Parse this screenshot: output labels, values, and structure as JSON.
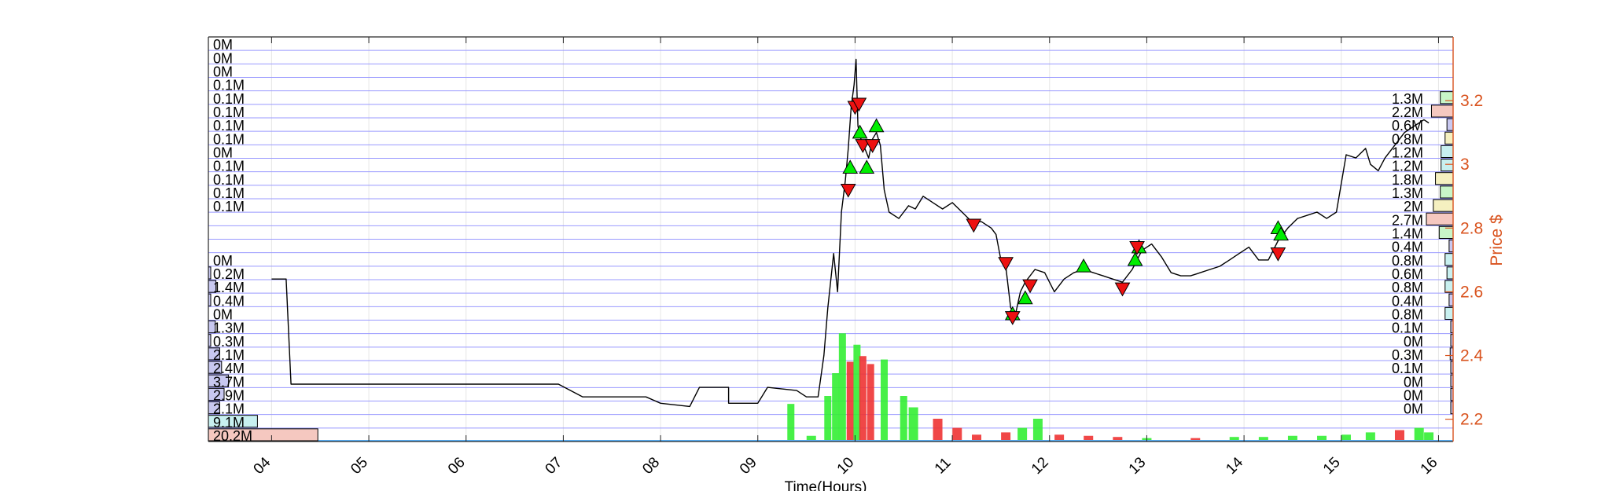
{
  "chart_data": {
    "type": "line",
    "xlabel": "Time(Hours)",
    "ylabel_right": "Price $",
    "x_ticks": [
      "04",
      "05",
      "06",
      "07",
      "08",
      "09",
      "10",
      "11",
      "12",
      "13",
      "14",
      "15",
      "16"
    ],
    "xlim": [
      3.35,
      16.15
    ],
    "ylim_right": [
      2.13,
      3.4
    ],
    "y_ticks_right": [
      {
        "value": 2.2,
        "label": "2.2"
      },
      {
        "value": 2.4,
        "label": "2.4"
      },
      {
        "value": 2.6,
        "label": "2.6"
      },
      {
        "value": 2.8,
        "label": "2.8"
      },
      {
        "value": 3.0,
        "label": "3"
      },
      {
        "value": 3.2,
        "label": "3.2"
      }
    ],
    "colors": {
      "price_line": "#000000",
      "right_axis": "#d9531e",
      "grid": "#9999ff",
      "buy_marker": "#00ee00",
      "sell_marker": "#ee1111",
      "volume_up": "#33ee33",
      "volume_down": "#ee3333",
      "bin_blue": "#c8c8f0",
      "bin_cyan": "#c8f0f0",
      "bin_red": "#f5c8c0",
      "bin_yellow": "#f5f0c0",
      "bin_green": "#c8f5c8"
    },
    "price_series": {
      "name": "",
      "points": [
        [
          4.0,
          2.64
        ],
        [
          4.15,
          2.64
        ],
        [
          4.2,
          2.31
        ],
        [
          5.2,
          2.31
        ],
        [
          6.0,
          2.31
        ],
        [
          6.95,
          2.31
        ],
        [
          7.2,
          2.27
        ],
        [
          7.85,
          2.27
        ],
        [
          8.0,
          2.25
        ],
        [
          8.3,
          2.24
        ],
        [
          8.4,
          2.3
        ],
        [
          8.7,
          2.3
        ],
        [
          8.7,
          2.25
        ],
        [
          9.0,
          2.25
        ],
        [
          9.1,
          2.3
        ],
        [
          9.4,
          2.29
        ],
        [
          9.5,
          2.27
        ],
        [
          9.62,
          2.27
        ],
        [
          9.68,
          2.4
        ],
        [
          9.72,
          2.55
        ],
        [
          9.78,
          2.72
        ],
        [
          9.82,
          2.6
        ],
        [
          9.86,
          2.85
        ],
        [
          9.9,
          2.95
        ],
        [
          9.93,
          3.05
        ],
        [
          9.96,
          3.18
        ],
        [
          9.99,
          3.25
        ],
        [
          10.01,
          3.33
        ],
        [
          10.03,
          3.12
        ],
        [
          10.06,
          3.08
        ],
        [
          10.1,
          3.05
        ],
        [
          10.14,
          3.02
        ],
        [
          10.18,
          3.08
        ],
        [
          10.22,
          3.1
        ],
        [
          10.26,
          3.06
        ],
        [
          10.3,
          2.92
        ],
        [
          10.35,
          2.85
        ],
        [
          10.45,
          2.83
        ],
        [
          10.55,
          2.87
        ],
        [
          10.62,
          2.86
        ],
        [
          10.7,
          2.9
        ],
        [
          10.8,
          2.88
        ],
        [
          10.9,
          2.86
        ],
        [
          11.0,
          2.88
        ],
        [
          11.1,
          2.85
        ],
        [
          11.2,
          2.82
        ],
        [
          11.3,
          2.82
        ],
        [
          11.4,
          2.8
        ],
        [
          11.45,
          2.78
        ],
        [
          11.5,
          2.7
        ],
        [
          11.55,
          2.68
        ],
        [
          11.6,
          2.55
        ],
        [
          11.65,
          2.53
        ],
        [
          11.7,
          2.6
        ],
        [
          11.75,
          2.63
        ],
        [
          11.85,
          2.67
        ],
        [
          11.95,
          2.66
        ],
        [
          12.05,
          2.6
        ],
        [
          12.15,
          2.64
        ],
        [
          12.25,
          2.66
        ],
        [
          12.35,
          2.67
        ],
        [
          12.45,
          2.66
        ],
        [
          12.55,
          2.65
        ],
        [
          12.65,
          2.64
        ],
        [
          12.75,
          2.63
        ],
        [
          12.85,
          2.67
        ],
        [
          12.95,
          2.73
        ],
        [
          13.05,
          2.75
        ],
        [
          13.15,
          2.71
        ],
        [
          13.25,
          2.66
        ],
        [
          13.35,
          2.65
        ],
        [
          13.45,
          2.65
        ],
        [
          13.55,
          2.66
        ],
        [
          13.65,
          2.67
        ],
        [
          13.75,
          2.68
        ],
        [
          13.85,
          2.7
        ],
        [
          13.95,
          2.72
        ],
        [
          14.05,
          2.74
        ],
        [
          14.15,
          2.7
        ],
        [
          14.25,
          2.7
        ],
        [
          14.35,
          2.76
        ],
        [
          14.45,
          2.8
        ],
        [
          14.55,
          2.83
        ],
        [
          14.65,
          2.84
        ],
        [
          14.75,
          2.85
        ],
        [
          14.85,
          2.83
        ],
        [
          14.95,
          2.85
        ],
        [
          15.05,
          3.03
        ],
        [
          15.15,
          3.02
        ],
        [
          15.25,
          3.05
        ],
        [
          15.3,
          3.0
        ],
        [
          15.38,
          2.98
        ],
        [
          15.45,
          3.02
        ],
        [
          15.55,
          3.06
        ],
        [
          15.65,
          3.1
        ],
        [
          15.75,
          3.12
        ],
        [
          15.85,
          3.14
        ],
        [
          15.9,
          3.13
        ]
      ]
    },
    "buy_markers": [
      [
        9.95,
        2.99
      ],
      [
        10.05,
        3.1
      ],
      [
        10.12,
        2.99
      ],
      [
        10.22,
        3.12
      ],
      [
        11.75,
        2.58
      ],
      [
        11.62,
        2.53
      ],
      [
        12.35,
        2.68
      ],
      [
        12.88,
        2.7
      ],
      [
        12.92,
        2.74
      ],
      [
        14.35,
        2.8
      ],
      [
        14.38,
        2.78
      ]
    ],
    "sell_markers": [
      [
        9.93,
        2.92
      ],
      [
        10.0,
        3.18
      ],
      [
        10.04,
        3.19
      ],
      [
        10.08,
        3.06
      ],
      [
        10.18,
        3.06
      ],
      [
        11.22,
        2.81
      ],
      [
        11.55,
        2.69
      ],
      [
        11.8,
        2.62
      ],
      [
        11.62,
        2.52
      ],
      [
        12.75,
        2.61
      ],
      [
        12.9,
        2.74
      ],
      [
        14.35,
        2.72
      ]
    ],
    "volume_bars": [
      {
        "t": 9.34,
        "v": 0.33,
        "side": "up"
      },
      {
        "t": 9.55,
        "v": 0.05,
        "side": "up"
      },
      {
        "t": 9.72,
        "v": 0.4,
        "side": "up"
      },
      {
        "t": 9.8,
        "v": 0.6,
        "side": "up"
      },
      {
        "t": 9.87,
        "v": 0.95,
        "side": "up"
      },
      {
        "t": 9.95,
        "v": 0.7,
        "side": "down"
      },
      {
        "t": 10.02,
        "v": 0.85,
        "side": "up"
      },
      {
        "t": 10.08,
        "v": 0.75,
        "side": "down"
      },
      {
        "t": 10.16,
        "v": 0.68,
        "side": "down"
      },
      {
        "t": 10.3,
        "v": 0.72,
        "side": "up"
      },
      {
        "t": 10.5,
        "v": 0.4,
        "side": "up"
      },
      {
        "t": 10.6,
        "v": 0.3,
        "side": "up"
      },
      {
        "t": 10.85,
        "v": 0.2,
        "side": "down"
      },
      {
        "t": 11.05,
        "v": 0.12,
        "side": "down"
      },
      {
        "t": 11.25,
        "v": 0.06,
        "side": "down"
      },
      {
        "t": 11.55,
        "v": 0.08,
        "side": "down"
      },
      {
        "t": 11.72,
        "v": 0.12,
        "side": "up"
      },
      {
        "t": 11.88,
        "v": 0.2,
        "side": "up"
      },
      {
        "t": 12.1,
        "v": 0.06,
        "side": "down"
      },
      {
        "t": 12.4,
        "v": 0.05,
        "side": "down"
      },
      {
        "t": 12.7,
        "v": 0.04,
        "side": "down"
      },
      {
        "t": 13.0,
        "v": 0.03,
        "side": "up"
      },
      {
        "t": 13.5,
        "v": 0.03,
        "side": "down"
      },
      {
        "t": 13.9,
        "v": 0.04,
        "side": "up"
      },
      {
        "t": 14.2,
        "v": 0.04,
        "side": "up"
      },
      {
        "t": 14.5,
        "v": 0.05,
        "side": "up"
      },
      {
        "t": 14.8,
        "v": 0.05,
        "side": "up"
      },
      {
        "t": 15.05,
        "v": 0.06,
        "side": "up"
      },
      {
        "t": 15.3,
        "v": 0.08,
        "side": "up"
      },
      {
        "t": 15.6,
        "v": 0.1,
        "side": "down"
      },
      {
        "t": 15.8,
        "v": 0.12,
        "side": "up"
      },
      {
        "t": 15.9,
        "v": 0.08,
        "side": "up"
      }
    ],
    "volume_profile_left": [
      {
        "label": "0M",
        "frac": 0.0,
        "color": "none"
      },
      {
        "label": "0M",
        "frac": 0.0,
        "color": "none"
      },
      {
        "label": "0M",
        "frac": 0.0,
        "color": "none"
      },
      {
        "label": "0.1M",
        "frac": 0.0,
        "color": "none"
      },
      {
        "label": "0.1M",
        "frac": 0.0,
        "color": "none"
      },
      {
        "label": "0.1M",
        "frac": 0.0,
        "color": "none"
      },
      {
        "label": "0.1M",
        "frac": 0.0,
        "color": "none"
      },
      {
        "label": "0.1M",
        "frac": 0.0,
        "color": "none"
      },
      {
        "label": "0M",
        "frac": 0.0,
        "color": "none"
      },
      {
        "label": "0.1M",
        "frac": 0.0,
        "color": "none"
      },
      {
        "label": "0.1M",
        "frac": 0.0,
        "color": "none"
      },
      {
        "label": "0.1M",
        "frac": 0.0,
        "color": "none"
      },
      {
        "label": "0.1M",
        "frac": 0.0,
        "color": "none"
      },
      {
        "label": "",
        "frac": 0.0,
        "color": "none"
      },
      {
        "label": "",
        "frac": 0.0,
        "color": "none"
      },
      {
        "label": "",
        "frac": 0.0,
        "color": "none"
      },
      {
        "label": "0M",
        "frac": 0.0,
        "color": "none"
      },
      {
        "label": "0.2M",
        "frac": 0.012,
        "color": "blue"
      },
      {
        "label": "1.4M",
        "frac": 0.06,
        "color": "blue"
      },
      {
        "label": "0.4M",
        "frac": 0.018,
        "color": "blue"
      },
      {
        "label": "0M",
        "frac": 0.0,
        "color": "none"
      },
      {
        "label": "1.3M",
        "frac": 0.055,
        "color": "blue"
      },
      {
        "label": "0.3M",
        "frac": 0.015,
        "color": "blue"
      },
      {
        "label": "2.1M",
        "frac": 0.09,
        "color": "blue"
      },
      {
        "label": "2.4M",
        "frac": 0.105,
        "color": "blue"
      },
      {
        "label": "3.7M",
        "frac": 0.16,
        "color": "blue"
      },
      {
        "label": "2.9M",
        "frac": 0.125,
        "color": "blue"
      },
      {
        "label": "2.1M",
        "frac": 0.09,
        "color": "blue"
      },
      {
        "label": "9.1M",
        "frac": 0.39,
        "color": "cyan"
      },
      {
        "label": "20.2M",
        "frac": 0.87,
        "color": "red"
      }
    ],
    "volume_profile_right": [
      {
        "label": "",
        "frac": 0.0,
        "color": "none"
      },
      {
        "label": "",
        "frac": 0.0,
        "color": "none"
      },
      {
        "label": "",
        "frac": 0.0,
        "color": "none"
      },
      {
        "label": "",
        "frac": 0.0,
        "color": "none"
      },
      {
        "label": "1.3M",
        "frac": 0.48,
        "color": "green"
      },
      {
        "label": "2.2M",
        "frac": 0.81,
        "color": "red"
      },
      {
        "label": "0.6M",
        "frac": 0.23,
        "color": "blue"
      },
      {
        "label": "0.8M",
        "frac": 0.3,
        "color": "yellow"
      },
      {
        "label": "1.2M",
        "frac": 0.45,
        "color": "cyan"
      },
      {
        "label": "1.2M",
        "frac": 0.45,
        "color": "cyan"
      },
      {
        "label": "1.8M",
        "frac": 0.66,
        "color": "yellow"
      },
      {
        "label": "1.3M",
        "frac": 0.48,
        "color": "green"
      },
      {
        "label": "2M",
        "frac": 0.74,
        "color": "yellow"
      },
      {
        "label": "2.7M",
        "frac": 1.0,
        "color": "red"
      },
      {
        "label": "1.4M",
        "frac": 0.52,
        "color": "green"
      },
      {
        "label": "0.4M",
        "frac": 0.15,
        "color": "blue"
      },
      {
        "label": "0.8M",
        "frac": 0.3,
        "color": "cyan"
      },
      {
        "label": "0.6M",
        "frac": 0.23,
        "color": "cyan"
      },
      {
        "label": "0.8M",
        "frac": 0.3,
        "color": "cyan"
      },
      {
        "label": "0.4M",
        "frac": 0.15,
        "color": "blue"
      },
      {
        "label": "0.8M",
        "frac": 0.3,
        "color": "cyan"
      },
      {
        "label": "0.1M",
        "frac": 0.05,
        "color": "blue"
      },
      {
        "label": "0M",
        "frac": 0.02,
        "color": "blue"
      },
      {
        "label": "0.3M",
        "frac": 0.11,
        "color": "blue"
      },
      {
        "label": "0.1M",
        "frac": 0.05,
        "color": "blue"
      },
      {
        "label": "0M",
        "frac": 0.02,
        "color": "blue"
      },
      {
        "label": "0M",
        "frac": 0.02,
        "color": "blue"
      },
      {
        "label": "0M",
        "frac": 0.02,
        "color": "blue"
      },
      {
        "label": "",
        "frac": 0.0,
        "color": "none"
      },
      {
        "label": "",
        "frac": 0.0,
        "color": "none"
      }
    ]
  }
}
